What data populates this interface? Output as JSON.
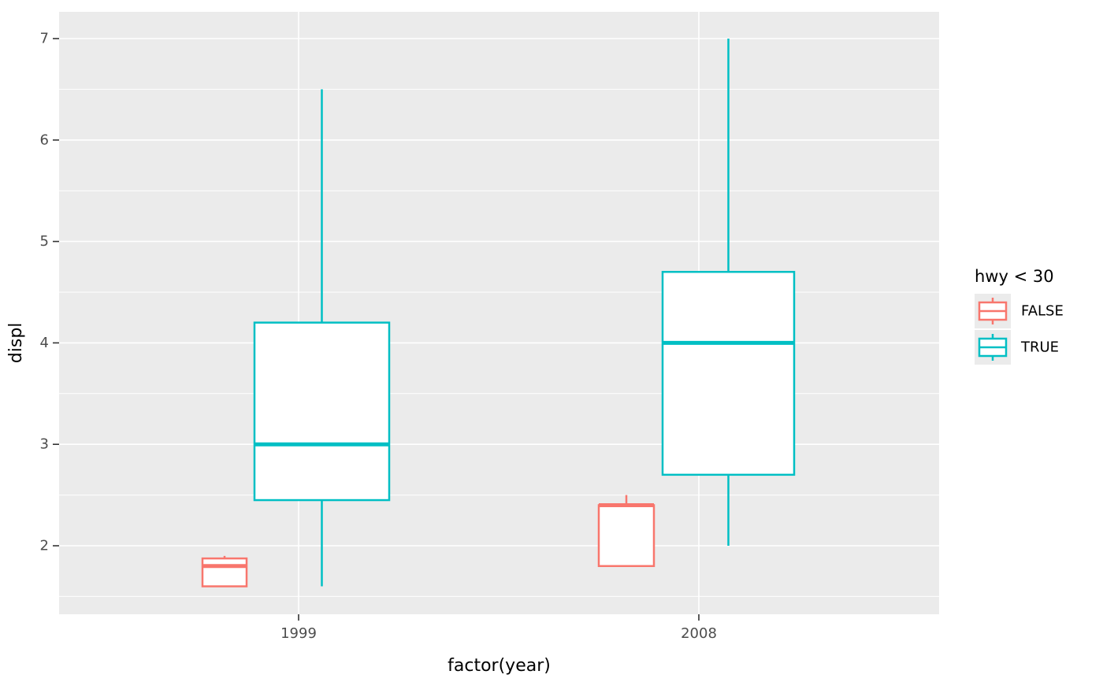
{
  "chart_data": {
    "type": "boxplot",
    "title": "",
    "xlabel": "factor(year)",
    "ylabel": "displ",
    "categories": [
      "1999",
      "2008"
    ],
    "y_ticks": [
      2,
      3,
      4,
      5,
      6,
      7
    ],
    "y_minor_ticks": [
      1.5,
      2.5,
      3.5,
      4.5,
      5.5,
      6.5
    ],
    "ylim": [
      1.32,
      7.26
    ],
    "grid": true,
    "variable_width_boxes": true,
    "legend": {
      "title": "hwy < 30",
      "position": "right",
      "entries": [
        {
          "label": "FALSE",
          "color": "#F8766D"
        },
        {
          "label": "TRUE",
          "color": "#00BFC4"
        }
      ]
    },
    "series": [
      {
        "name": "FALSE",
        "color": "#F8766D",
        "boxes": [
          {
            "category": "1999",
            "min": 1.6,
            "q1": 1.6,
            "median": 1.8,
            "q3": 1.875,
            "max": 1.9
          },
          {
            "category": "2008",
            "min": 1.8,
            "q1": 1.8,
            "median": 2.4,
            "q3": 2.4,
            "max": 2.5
          }
        ]
      },
      {
        "name": "TRUE",
        "color": "#00BFC4",
        "boxes": [
          {
            "category": "1999",
            "min": 1.6,
            "q1": 2.45,
            "median": 3.0,
            "q3": 4.2,
            "max": 6.5
          },
          {
            "category": "2008",
            "min": 2.0,
            "q1": 2.7,
            "median": 4.0,
            "q3": 4.7,
            "max": 7.0
          }
        ]
      }
    ],
    "style": {
      "panel_background": "#EBEBEB",
      "grid_color": "#FFFFFF",
      "tick_label_color": "#4D4D4D",
      "tick_mark_color": "#333333",
      "axis_title_color": "#000000",
      "legend_text_color": "#000000",
      "legend_key_background": "#EBEBEB",
      "box_fill": "#FFFFFF",
      "figure_background": "#FFFFFF"
    }
  }
}
